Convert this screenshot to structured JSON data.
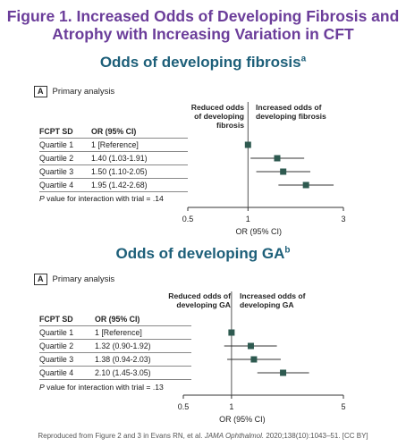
{
  "figure_title": "Figure 1. Increased Odds of Developing Fibrosis and Atrophy with Increasing Variation in CFT",
  "colors": {
    "title": "#6b3d9a",
    "subtitle": "#1d5f79",
    "marker": "#2e5a50"
  },
  "chart_data": [
    {
      "type": "forest",
      "title": "Odds of developing fibrosis",
      "title_superscript": "a",
      "panel_letter": "A",
      "panel_label": "Primary analysis",
      "col_header_1": "FCPT SD",
      "col_header_2": "OR (95% CI)",
      "direction_left": "Reduced odds of developing fibrosis",
      "direction_right": "Increased odds of developing fibrosis",
      "rows": [
        {
          "label": "Quartile 1",
          "text": "1 [Reference]",
          "or": 1,
          "lo": 1,
          "hi": 1
        },
        {
          "label": "Quartile 2",
          "text": "1.40 (1.03-1.91)",
          "or": 1.4,
          "lo": 1.03,
          "hi": 1.91
        },
        {
          "label": "Quartile 3",
          "text": "1.50 (1.10-2.05)",
          "or": 1.5,
          "lo": 1.1,
          "hi": 2.05
        },
        {
          "label": "Quartile 4",
          "text": "1.95 (1.42-2.68)",
          "or": 1.95,
          "lo": 1.42,
          "hi": 2.68
        }
      ],
      "p_label": "P",
      "p_text": "value for interaction with trial = .14",
      "x_scale": "log",
      "x_ticks": [
        0.5,
        1,
        3
      ],
      "xlim": [
        0.5,
        3
      ],
      "xlabel": "OR (95% CI)"
    },
    {
      "type": "forest",
      "title": "Odds of developing GA",
      "title_superscript": "b",
      "panel_letter": "A",
      "panel_label": "Primary analysis",
      "col_header_1": "FCPT SD",
      "col_header_2": "OR (95% CI)",
      "direction_left": "Reduced odds of developing GA",
      "direction_right": "Increased odds of developing GA",
      "rows": [
        {
          "label": "Quartile 1",
          "text": "1 [Reference]",
          "or": 1,
          "lo": 1,
          "hi": 1
        },
        {
          "label": "Quartile 2",
          "text": "1.32 (0.90-1.92)",
          "or": 1.32,
          "lo": 0.9,
          "hi": 1.92
        },
        {
          "label": "Quartile 3",
          "text": "1.38 (0.94-2.03)",
          "or": 1.38,
          "lo": 0.94,
          "hi": 2.03
        },
        {
          "label": "Quartile 4",
          "text": "2.10 (1.45-3.05)",
          "or": 2.1,
          "lo": 1.45,
          "hi": 3.05
        }
      ],
      "p_label": "P",
      "p_text": "value for interaction with trial = .13",
      "x_scale": "log",
      "x_ticks": [
        0.5,
        1,
        5
      ],
      "xlim": [
        0.5,
        5
      ],
      "xlabel": "OR (95% CI)"
    }
  ],
  "footer": {
    "prefix": "Reproduced from Figure 2 and 3 in Evans RN, et al.",
    "journal": "JAMA Ophthalmol.",
    "suffix": "2020;138(10):1043–51. [CC BY]"
  }
}
